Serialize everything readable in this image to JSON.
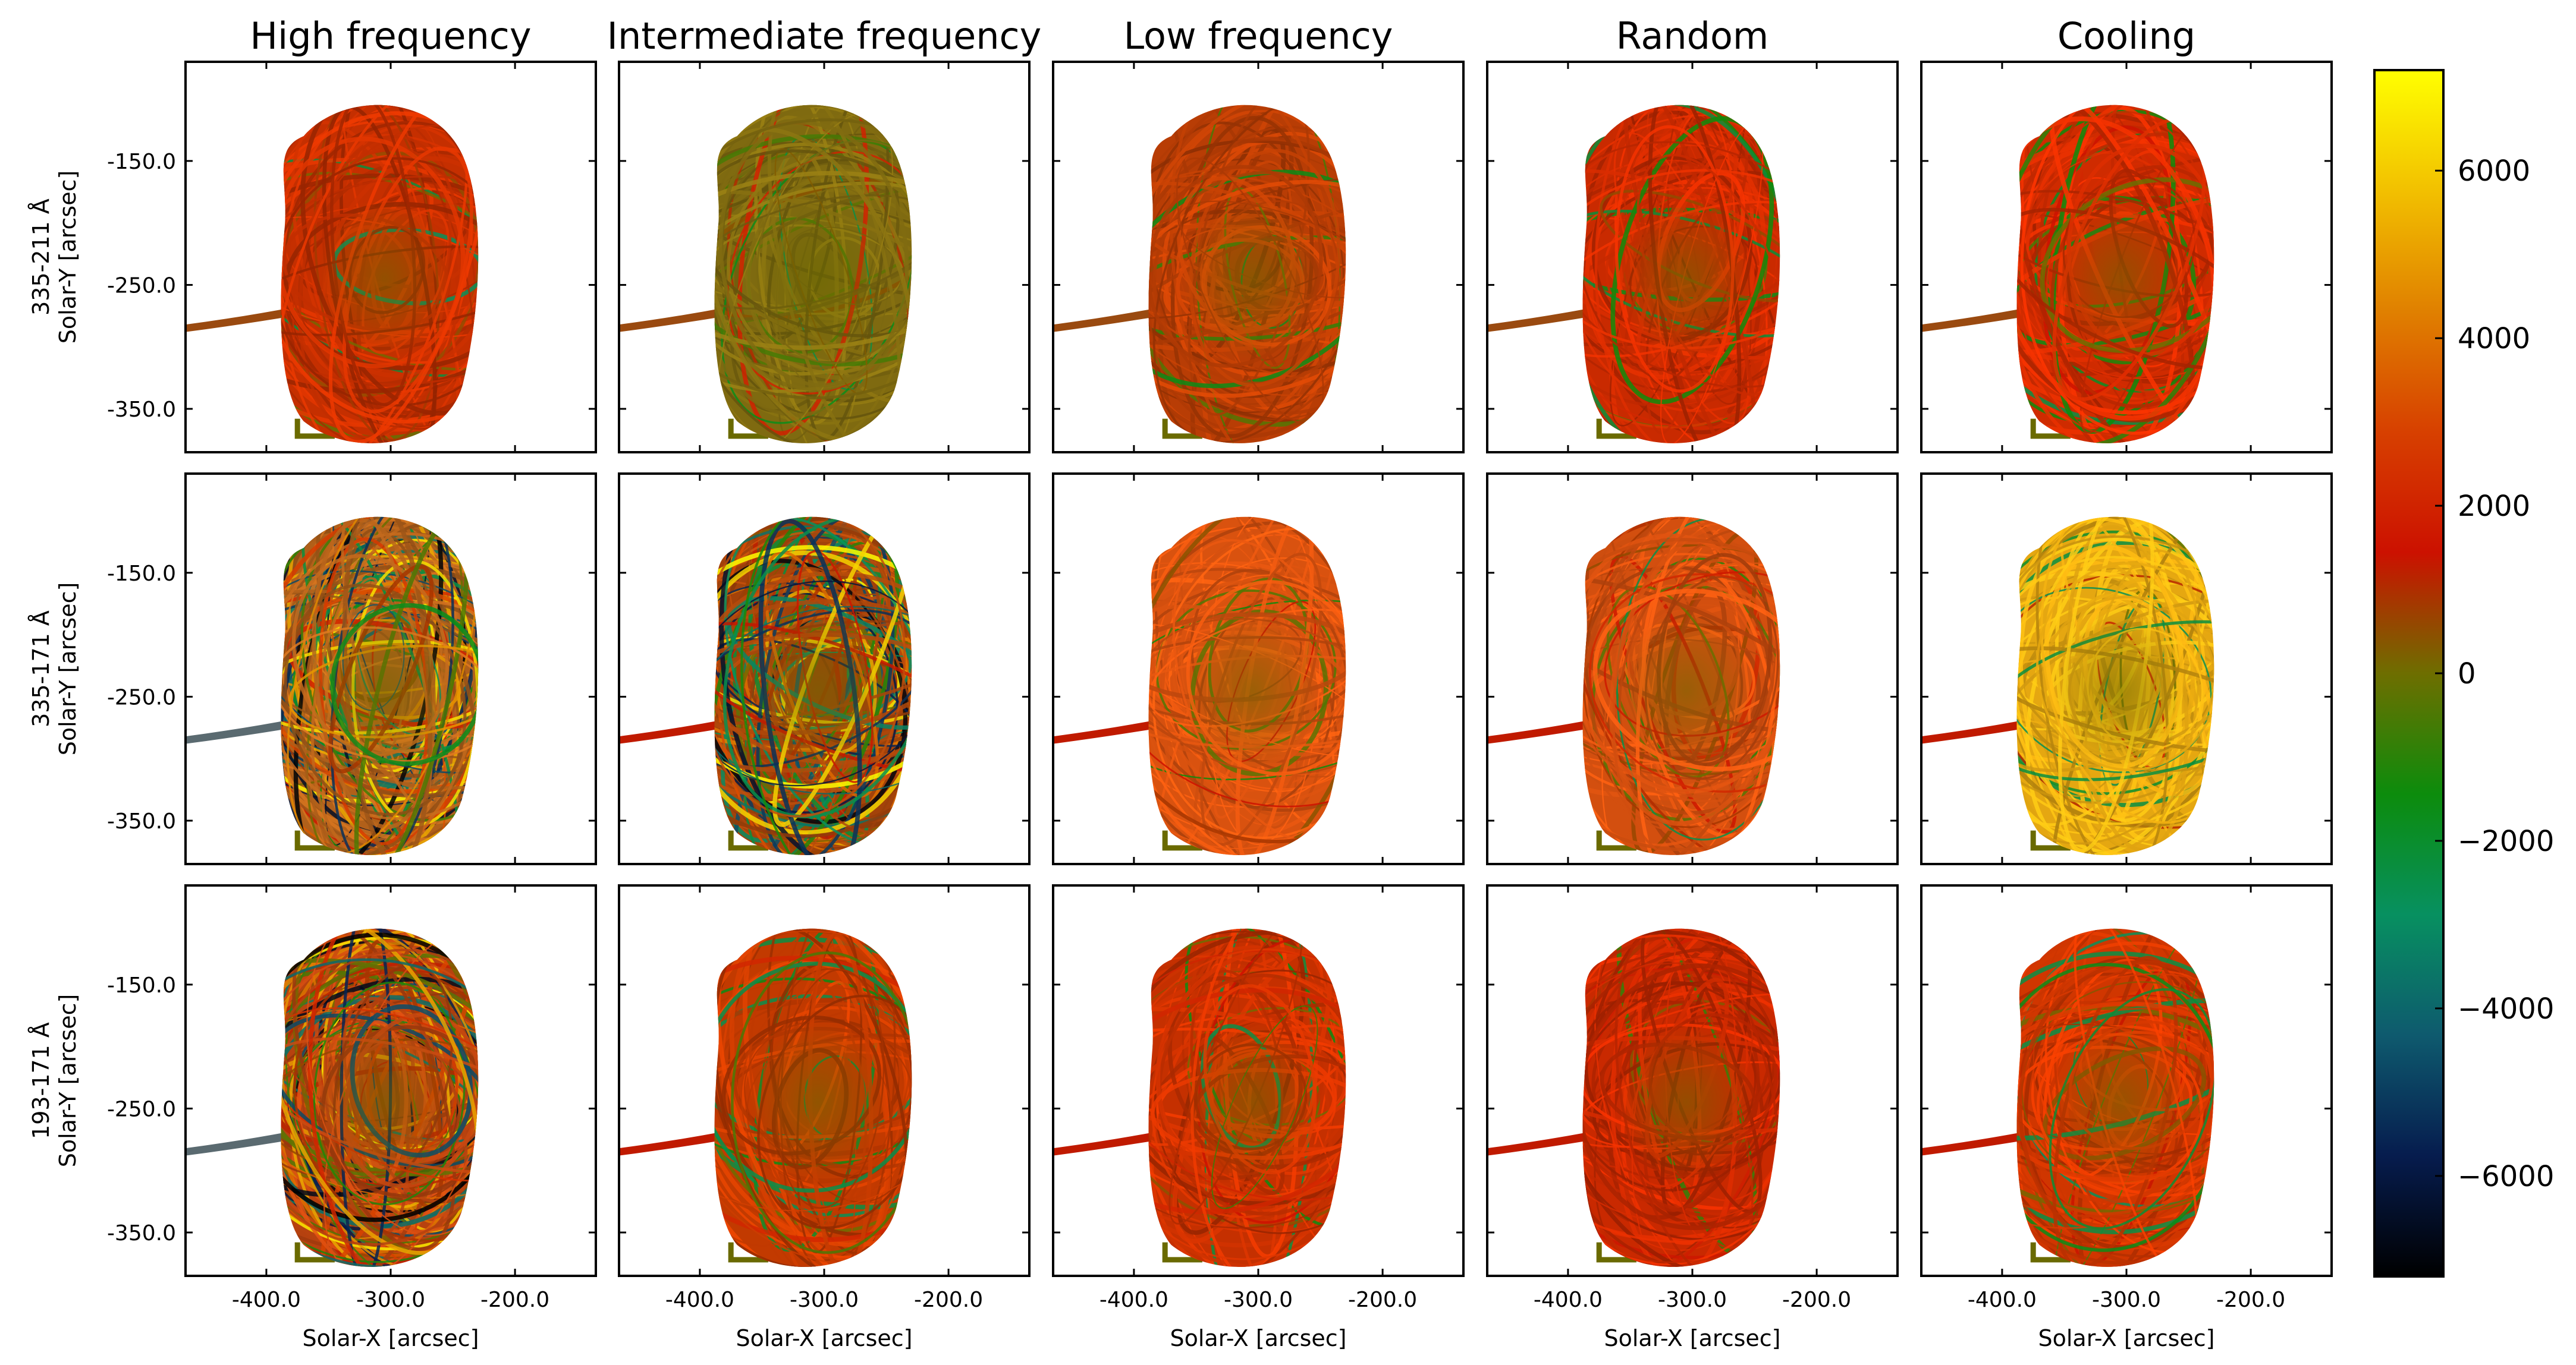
{
  "chart_data": {
    "type": "heatmap",
    "columns": [
      "High frequency",
      "Intermediate frequency",
      "Low frequency",
      "Random",
      "Cooling"
    ],
    "rows": [
      {
        "label": "335-211 Å",
        "ylabel": "Solar-Y [arcsec]"
      },
      {
        "label": "335-171 Å",
        "ylabel": "Solar-Y [arcsec]"
      },
      {
        "label": "193-171 Å",
        "ylabel": "Solar-Y [arcsec]"
      }
    ],
    "xlabel": "Solar-X [arcsec]",
    "x_ticks": [
      -400.0,
      -300.0,
      -200.0
    ],
    "x_tick_labels": [
      "-400.0",
      "-300.0",
      "-200.0"
    ],
    "y_ticks": [
      -150.0,
      -250.0,
      -350.0
    ],
    "y_tick_labels": [
      "-150.0",
      "-250.0",
      "-350.0"
    ],
    "xlim": [
      -465,
      -135
    ],
    "ylim": [
      -385,
      -70
    ],
    "colorbar": {
      "min": -7200,
      "max": 7200,
      "ticks": [
        6000,
        4000,
        2000,
        0,
        -2000,
        -4000,
        -6000
      ],
      "tick_labels": [
        "6000",
        "4000",
        "2000",
        "0",
        "−2000",
        "−4000",
        "−6000"
      ],
      "colors": [
        "#ffff00",
        "#f2c000",
        "#e08000",
        "#d74000",
        "#cc1100",
        "#6e6e00",
        "#0c8c0c",
        "#079060",
        "#0e5a6e",
        "#061c4e",
        "#000000"
      ]
    },
    "panel_dominant_colors": [
      [
        "#c52f00",
        "#7f6a10",
        "#b83d05",
        "#c92a00",
        "#cf2b00"
      ],
      [
        "#b1601a",
        "#a3420a",
        "#d9520f",
        "#d34f0f",
        "#e5a711"
      ],
      [
        "#b7420f",
        "#c23a00",
        "#c53000",
        "#c92900",
        "#d03600"
      ]
    ]
  }
}
